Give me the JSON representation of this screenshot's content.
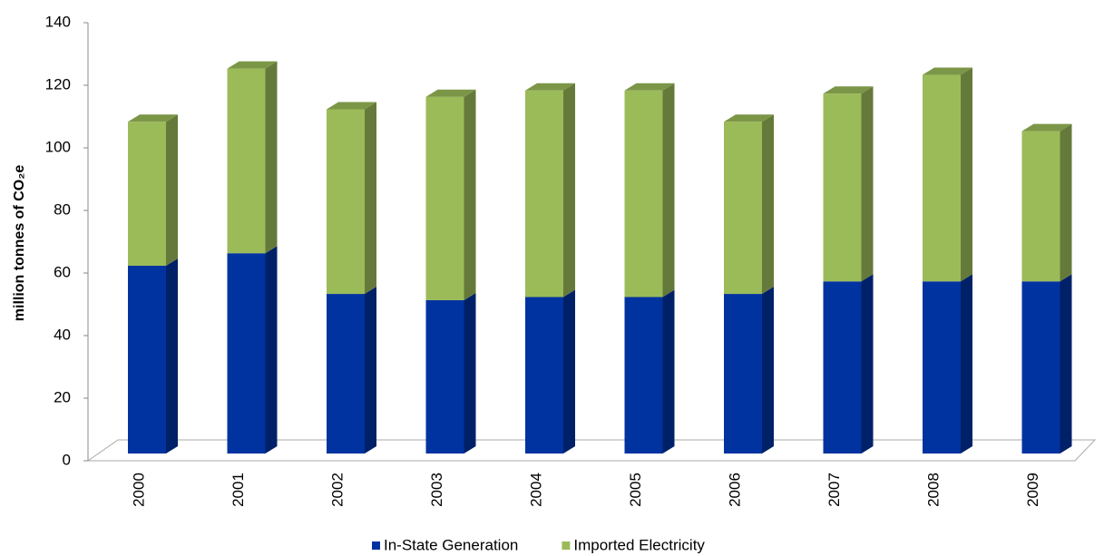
{
  "chart_data": {
    "type": "bar3d_stacked",
    "y_label": "million tonnes of CO₂e",
    "categories": [
      "2000",
      "2001",
      "2002",
      "2003",
      "2004",
      "2005",
      "2006",
      "2007",
      "2008",
      "2009"
    ],
    "series": [
      {
        "name": "In-State Generation",
        "color": "#0033a0",
        "values": [
          60,
          64,
          51,
          49,
          50,
          50,
          51,
          55,
          55,
          55
        ]
      },
      {
        "name": "Imported Electricity",
        "color": "#9bbb59",
        "values": [
          46,
          59,
          59,
          65,
          66,
          66,
          55,
          60,
          66,
          48
        ]
      }
    ],
    "ylim": [
      0,
      140
    ],
    "yticks": [
      0,
      20,
      40,
      60,
      80,
      100,
      120,
      140
    ],
    "legend": "bottom"
  }
}
